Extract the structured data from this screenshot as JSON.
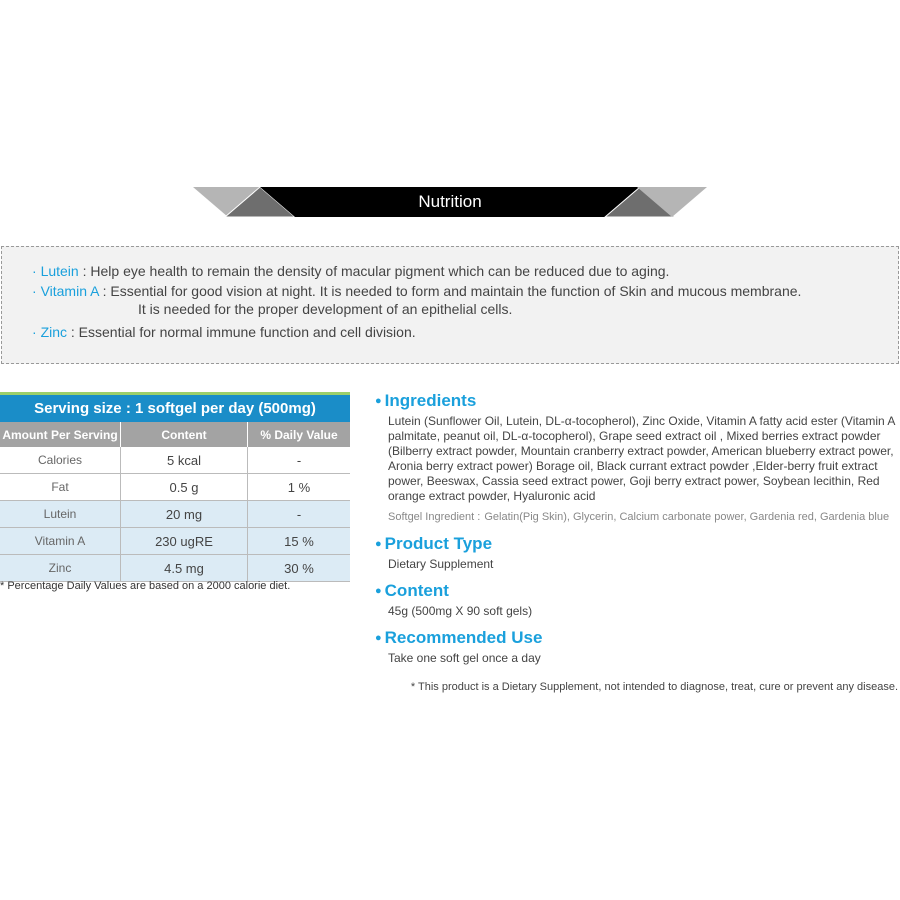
{
  "banner": {
    "title": "Nutrition"
  },
  "info": {
    "lutein_key": "Lutein",
    "lutein_text": " : Help eye health to remain the density of macular pigment which can be reduced due to aging.",
    "vitamin_key": "Vitamin A",
    "vitamin_text1": " : Essential for good vision at night. It is needed to form and maintain the function of Skin and mucous membrane.",
    "vitamin_text2": "It is needed for the proper development of an epithelial cells.",
    "zinc_key": "Zinc",
    "zinc_text": " : Essential for normal immune function and cell division."
  },
  "table": {
    "title": "Serving size : 1 softgel per day (500mg)",
    "headers": [
      "Amount Per Serving",
      "Content",
      "% Daily Value"
    ],
    "rows": [
      [
        "Calories",
        "5 kcal",
        "-"
      ],
      [
        "Fat",
        "0.5 g",
        "1 %"
      ],
      [
        "Lutein",
        "20 mg",
        "-"
      ],
      [
        "Vitamin A",
        "230 ugRE",
        "15 %"
      ],
      [
        "Zinc",
        "4.5 mg",
        "30 %"
      ]
    ],
    "footnote": "* Percentage Daily Values are based on a 2000 calorie diet."
  },
  "details": {
    "ingredients_title": "Ingredients",
    "ingredients_text": "Lutein (Sunflower Oil, Lutein, DL-α-tocopherol), Zinc  Oxide, Vitamin A fatty acid ester (Vitamin A palmitate, peanut oil, DL-α-tocopherol), Grape seed extract oil , Mixed berries extract powder (Bilberry extract powder, Mountain cranberry extract powder, American blueberry extract power, Aronia berry extract power) Borage oil, Black currant extract powder ,Elder-berry fruit extract power, Beeswax, Cassia seed extract power, Goji berry extract power, Soybean lecithin, Red orange extract powder, Hyaluronic acid",
    "softgel_label": "Softgel Ingredient :",
    "softgel_text": "Gelatin(Pig Skin), Glycerin, Calcium carbonate power, Gardenia red, Gardenia blue",
    "product_type_title": "Product Type",
    "product_type_text": "Dietary Supplement",
    "content_title": "Content",
    "content_text": "45g (500mg X 90 soft gels)",
    "use_title": "Recommended Use",
    "use_text": "Take one soft gel once a day",
    "disclaimer": "* This product is a Dietary Supplement, not intended to diagnose, treat, cure or prevent any disease."
  },
  "colors": {
    "accent": "#1aa0dc",
    "table_header": "#1a8dc8",
    "row_highlight": "#dcebf5"
  }
}
